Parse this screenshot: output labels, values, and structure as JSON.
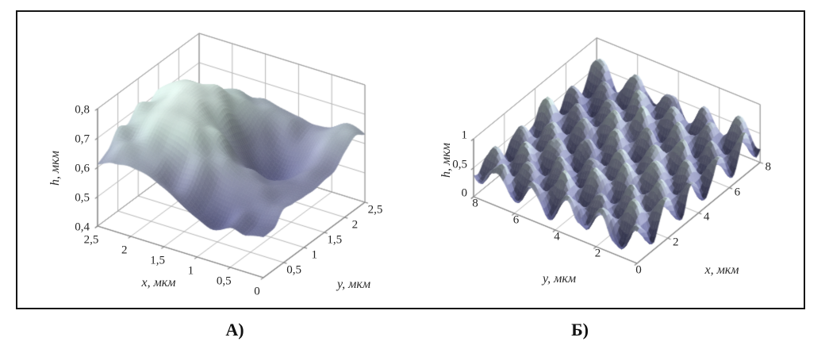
{
  "figure": {
    "caption_a": "А)",
    "caption_b": "Б)",
    "frame_border_color": "#151515",
    "background_color": "#ffffff",
    "grid_color": "#b7b7b7",
    "box_edge_color": "#9a9a9a",
    "front_edge_color": "#858585",
    "text_color": "#262626"
  },
  "chart_data": [
    {
      "panel_label": "А)",
      "type": "surface",
      "title": "",
      "xlabel": "x, мкм",
      "ylabel": "y, мкм",
      "zlabel": "h, мкм",
      "xlim": [
        0,
        2.5
      ],
      "ylim": [
        0,
        2.5
      ],
      "zlim": [
        0.4,
        0.8
      ],
      "x_ticks": [
        {
          "v": 2.5,
          "label": "2,5"
        },
        {
          "v": 2,
          "label": "2"
        },
        {
          "v": 1.5,
          "label": "1,5"
        },
        {
          "v": 1,
          "label": "1"
        },
        {
          "v": 0.5,
          "label": "0,5"
        },
        {
          "v": 0,
          "label": "0"
        }
      ],
      "y_ticks": [
        {
          "v": 0.5,
          "label": "0,5"
        },
        {
          "v": 1,
          "label": "1"
        },
        {
          "v": 1.5,
          "label": "1,5"
        },
        {
          "v": 2,
          "label": "2"
        },
        {
          "v": 2.5,
          "label": "2,5"
        }
      ],
      "z_ticks": [
        {
          "v": 0.4,
          "label": "0,4"
        },
        {
          "v": 0.5,
          "label": "0,5"
        },
        {
          "v": 0.6,
          "label": "0,6"
        },
        {
          "v": 0.7,
          "label": "0,7"
        },
        {
          "v": 0.8,
          "label": "0,8"
        }
      ],
      "grid": true,
      "surface": {
        "kind": "smooth-hills",
        "grid": 56,
        "colormap": [
          "#2e2f54",
          "#5c5e84",
          "#8c90a8",
          "#b7c8c4",
          "#e4f1ea"
        ],
        "description": "Smooth rolling relief 0.45–0.8 мкм: high pale plateau at back-left, dark deep pit right of center, low dark band along front edge, medium ridge toward y=2.5 corner"
      }
    },
    {
      "panel_label": "Б)",
      "type": "surface",
      "title": "",
      "xlabel": "x, мкм",
      "ylabel": "y, мкм",
      "zlabel": "h, мкм",
      "xlim": [
        0,
        8
      ],
      "ylim": [
        0,
        8
      ],
      "zlim": [
        0,
        1
      ],
      "x_ticks": [
        {
          "v": 2,
          "label": "2"
        },
        {
          "v": 4,
          "label": "4"
        },
        {
          "v": 6,
          "label": "6"
        },
        {
          "v": 8,
          "label": "8"
        }
      ],
      "y_ticks": [
        {
          "v": 0,
          "label": "0"
        },
        {
          "v": 2,
          "label": "2"
        },
        {
          "v": 4,
          "label": "4"
        },
        {
          "v": 6,
          "label": "6"
        },
        {
          "v": 8,
          "label": "8"
        }
      ],
      "z_ticks": [
        {
          "v": 0,
          "label": "0"
        },
        {
          "v": 0.5,
          "label": "0,5"
        },
        {
          "v": 1,
          "label": "1"
        }
      ],
      "grid": true,
      "surface": {
        "kind": "periodic-bumps",
        "grid": 66,
        "colormap": [
          "#2e2f54",
          "#5c5e84",
          "#8c90a8",
          "#b7c8c4",
          "#e4f1ea"
        ],
        "description": "Dense quasi-periodic array of rounded bumps ~0.85 мкм pitch, heights ~0.1–0.95 мкм, pale mint tops with slate-lavender valleys"
      }
    }
  ]
}
